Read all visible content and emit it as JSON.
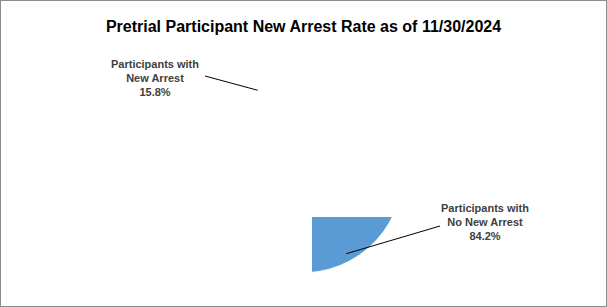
{
  "chart_data": {
    "type": "pie",
    "title": "Pretrial Participant New Arrest Rate as of 11/30/2024",
    "categories": [
      "Participants with No New Arrest",
      "Participants with New Arrest"
    ],
    "values": [
      84.2,
      15.8
    ],
    "value_labels": [
      "84.2%",
      "15.8%"
    ],
    "colors": [
      "#5b9bd5",
      "#ed7d31"
    ],
    "data_labels": true
  }
}
